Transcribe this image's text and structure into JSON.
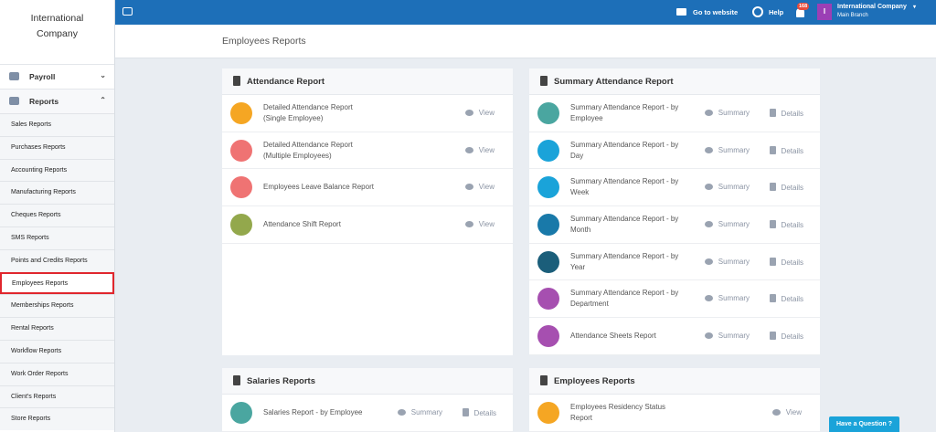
{
  "sidebar": {
    "company": "International Company",
    "menu": [
      "Payroll",
      "Reports"
    ],
    "submenu": [
      "Sales Reports",
      "Purchases Reports",
      "Accounting Reports",
      "Manufacturing Reports",
      "Cheques Reports",
      "SMS Reports",
      "Points and Credits Reports",
      "Employees Reports",
      "Memberships Reports",
      "Rental Reports",
      "Workflow Reports",
      "Work Order Reports",
      "Client's Reports",
      "Store Reports"
    ]
  },
  "topbar": {
    "go_to_website": "Go to website",
    "help": "Help",
    "notifications": "168",
    "user": {
      "initial": "I",
      "name": "International Company",
      "branch": "Main Branch"
    }
  },
  "page_title": "Employees Reports",
  "cards": [
    {
      "title": "Attendance Report",
      "rows": [
        {
          "label": "Detailed Attendance Report (Single Employee)",
          "color": "#f5a623",
          "actions": [
            "View"
          ]
        },
        {
          "label": "Detailed Attendance Report (Multiple Employees)",
          "color": "#ef7373",
          "actions": [
            "View"
          ]
        },
        {
          "label": "Employees Leave Balance Report",
          "color": "#ef7373",
          "actions": [
            "View"
          ]
        },
        {
          "label": "Attendance Shift Report",
          "color": "#93a84c",
          "actions": [
            "View"
          ]
        }
      ]
    },
    {
      "title": "Summary Attendance Report",
      "rows": [
        {
          "label": "Summary Attendance Report - by Employee",
          "color": "#4aa6a0",
          "actions": [
            "Summary",
            "Details"
          ]
        },
        {
          "label": "Summary Attendance Report - by Day",
          "color": "#1aa3d9",
          "actions": [
            "Summary",
            "Details"
          ]
        },
        {
          "label": "Summary Attendance Report - by Week",
          "color": "#1aa3d9",
          "actions": [
            "Summary",
            "Details"
          ]
        },
        {
          "label": "Summary Attendance Report - by Month",
          "color": "#1979a9",
          "actions": [
            "Summary",
            "Details"
          ]
        },
        {
          "label": "Summary Attendance Report - by Year",
          "color": "#1b5e7a",
          "actions": [
            "Summary",
            "Details"
          ]
        },
        {
          "label": "Summary Attendance Report - by Department",
          "color": "#a64fb0",
          "actions": [
            "Summary",
            "Details"
          ]
        },
        {
          "label": "Attendance Sheets Report",
          "color": "#a64fb0",
          "actions": [
            "Summary",
            "Details"
          ]
        }
      ]
    },
    {
      "title": "Salaries Reports",
      "rows": [
        {
          "label": "Salaries Report - by Employee",
          "color": "#4aa6a0",
          "actions": [
            "Summary",
            "Details"
          ]
        }
      ]
    },
    {
      "title": "Employees Reports",
      "rows": [
        {
          "label": "Employees Residency Status Report",
          "color": "#f5a623",
          "actions": [
            "View"
          ]
        }
      ]
    }
  ],
  "help_button": "Have a Question"
}
